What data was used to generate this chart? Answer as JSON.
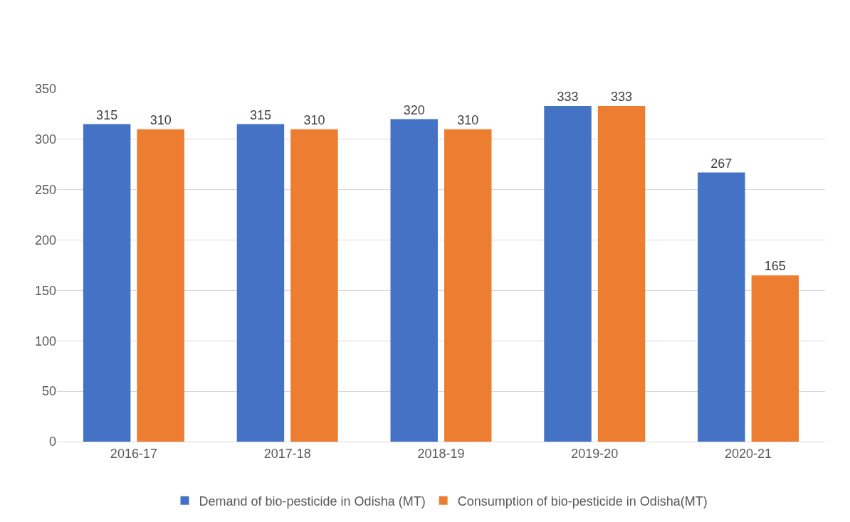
{
  "chart_data": {
    "type": "bar",
    "categories": [
      "2016-17",
      "2017-18",
      "2018-19",
      "2019-20",
      "2020-21"
    ],
    "series": [
      {
        "name": "Demand of bio-pesticide in Odisha (MT)",
        "color": "#4472c4",
        "values": [
          315,
          315,
          320,
          333,
          267
        ]
      },
      {
        "name": "Consumption of bio-pesticide in Odisha(MT)",
        "color": "#ed7d31",
        "values": [
          310,
          310,
          310,
          333,
          165
        ]
      }
    ],
    "ylim": [
      0,
      350
    ],
    "yticks": [
      0,
      50,
      100,
      150,
      200,
      250,
      300,
      350
    ],
    "grid": "y",
    "legend": "bottom",
    "data_labels": true
  }
}
